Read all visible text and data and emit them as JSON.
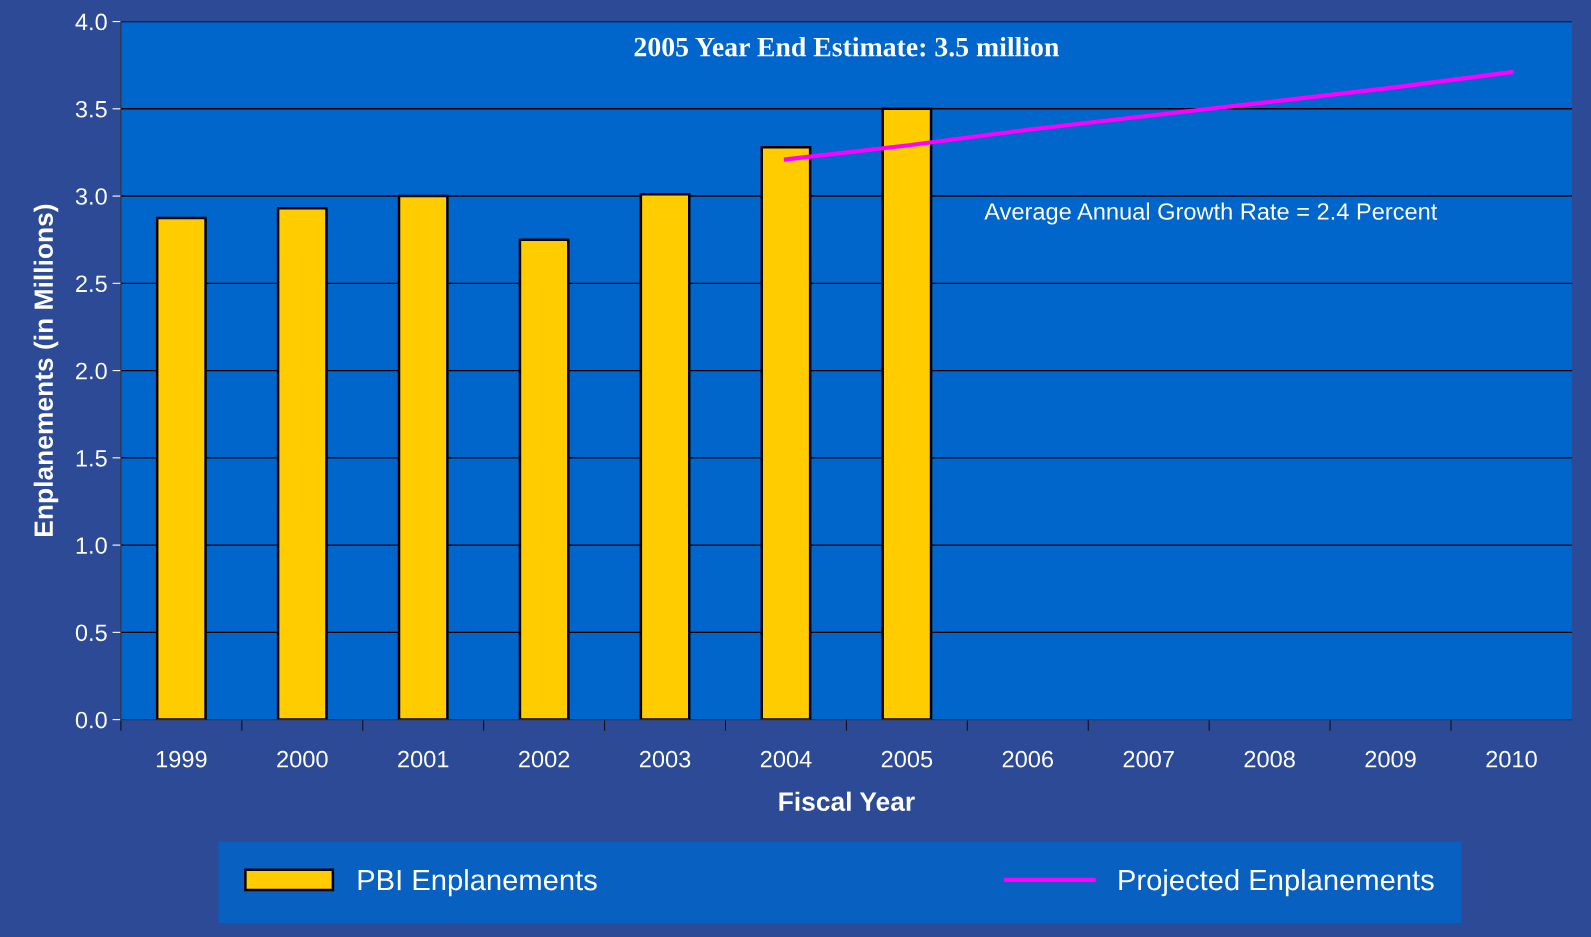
{
  "chart_data": {
    "type": "bar",
    "title": "2005 Year End Estimate: 3.5 million",
    "xlabel": "Fiscal Year",
    "ylabel": "Enplanements (in Millions)",
    "categories": [
      "1999",
      "2000",
      "2001",
      "2002",
      "2003",
      "2004",
      "2005",
      "2006",
      "2007",
      "2008",
      "2009",
      "2010"
    ],
    "series": [
      {
        "name": "PBI Enplanements",
        "color": "#ffcc00",
        "values": [
          2.875,
          2.93,
          3.0,
          2.75,
          3.01,
          3.28,
          3.5,
          null,
          null,
          null,
          null,
          null
        ]
      },
      {
        "name": "Projected Enplanements",
        "color": "#ff00ff",
        "type": "line",
        "values": [
          null,
          null,
          null,
          null,
          null,
          3.21,
          3.29,
          3.38,
          3.46,
          3.54,
          3.62,
          3.71
        ]
      }
    ],
    "annotations": [
      "Average Annual Growth Rate = 2.4 Percent"
    ],
    "ylim": [
      0,
      4
    ],
    "yticks": [
      {
        "value": 0,
        "label": "0.0"
      },
      {
        "value": 0.5,
        "label": "0.5"
      },
      {
        "value": 1,
        "label": "1.0"
      },
      {
        "value": 1.5,
        "label": "1.5"
      },
      {
        "value": 2,
        "label": "2.0"
      },
      {
        "value": 2.5,
        "label": "2.5"
      },
      {
        "value": 3,
        "label": "3.0"
      },
      {
        "value": 3.5,
        "label": "3.5"
      },
      {
        "value": 4,
        "label": "4.0"
      }
    ],
    "grid": "y",
    "legend": "bottom"
  }
}
